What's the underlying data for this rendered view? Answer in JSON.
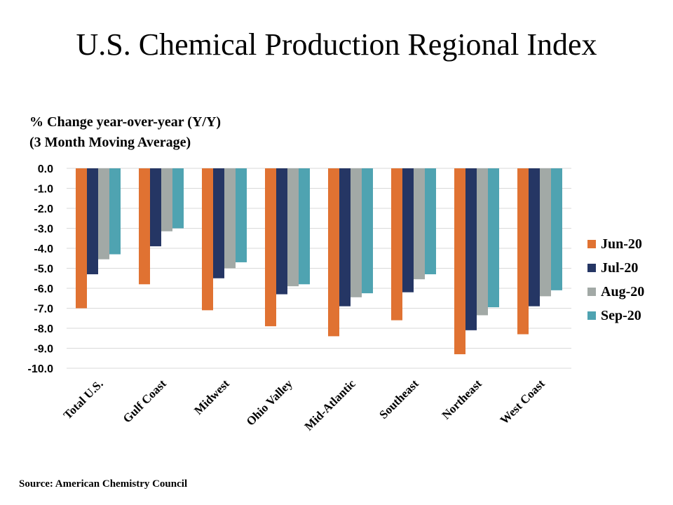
{
  "chart_data": {
    "type": "bar",
    "title": "U.S. Chemical Production Regional Index",
    "y_axis_label": [
      "% Change year-over-year (Y/Y)",
      "(3 Month Moving Average)"
    ],
    "source": "Source: American Chemistry Council",
    "categories": [
      "Total U.S.",
      "Gulf Coast",
      "Midwest",
      "Ohio Valley",
      "Mid-Atlantic",
      "Southeast",
      "Northeast",
      "West Coast"
    ],
    "series": [
      {
        "name": "Jun-20",
        "color": "#e07232",
        "values": [
          -7.0,
          -5.8,
          -7.1,
          -7.9,
          -8.4,
          -7.6,
          -9.3,
          -8.3
        ]
      },
      {
        "name": "Jul-20",
        "color": "#253664",
        "values": [
          -5.3,
          -3.9,
          -5.5,
          -6.3,
          -6.9,
          -6.2,
          -8.1,
          -6.9
        ]
      },
      {
        "name": "Aug-20",
        "color": "#a2a9a6",
        "values": [
          -4.55,
          -3.15,
          -5.0,
          -5.9,
          -6.45,
          -5.55,
          -7.35,
          -6.4
        ]
      },
      {
        "name": "Sep-20",
        "color": "#4fa3b1",
        "values": [
          -4.3,
          -3.0,
          -4.7,
          -5.8,
          -6.25,
          -5.3,
          -6.95,
          -6.1
        ]
      }
    ],
    "ylim": [
      -10,
      0
    ],
    "yticks": [
      {
        "value": 0,
        "label": "0.0"
      },
      {
        "value": -1,
        "label": "-1.0"
      },
      {
        "value": -2,
        "label": "-2.0"
      },
      {
        "value": -3,
        "label": "-3.0"
      },
      {
        "value": -4,
        "label": "-4.0"
      },
      {
        "value": -5,
        "label": "-5.0"
      },
      {
        "value": -6,
        "label": "-6.0"
      },
      {
        "value": -7,
        "label": "-7.0"
      },
      {
        "value": -8,
        "label": "-8.0"
      },
      {
        "value": -9,
        "label": "-9.0"
      },
      {
        "value": -10,
        "label": "-10.0"
      }
    ],
    "grid": true,
    "legend": "right"
  }
}
